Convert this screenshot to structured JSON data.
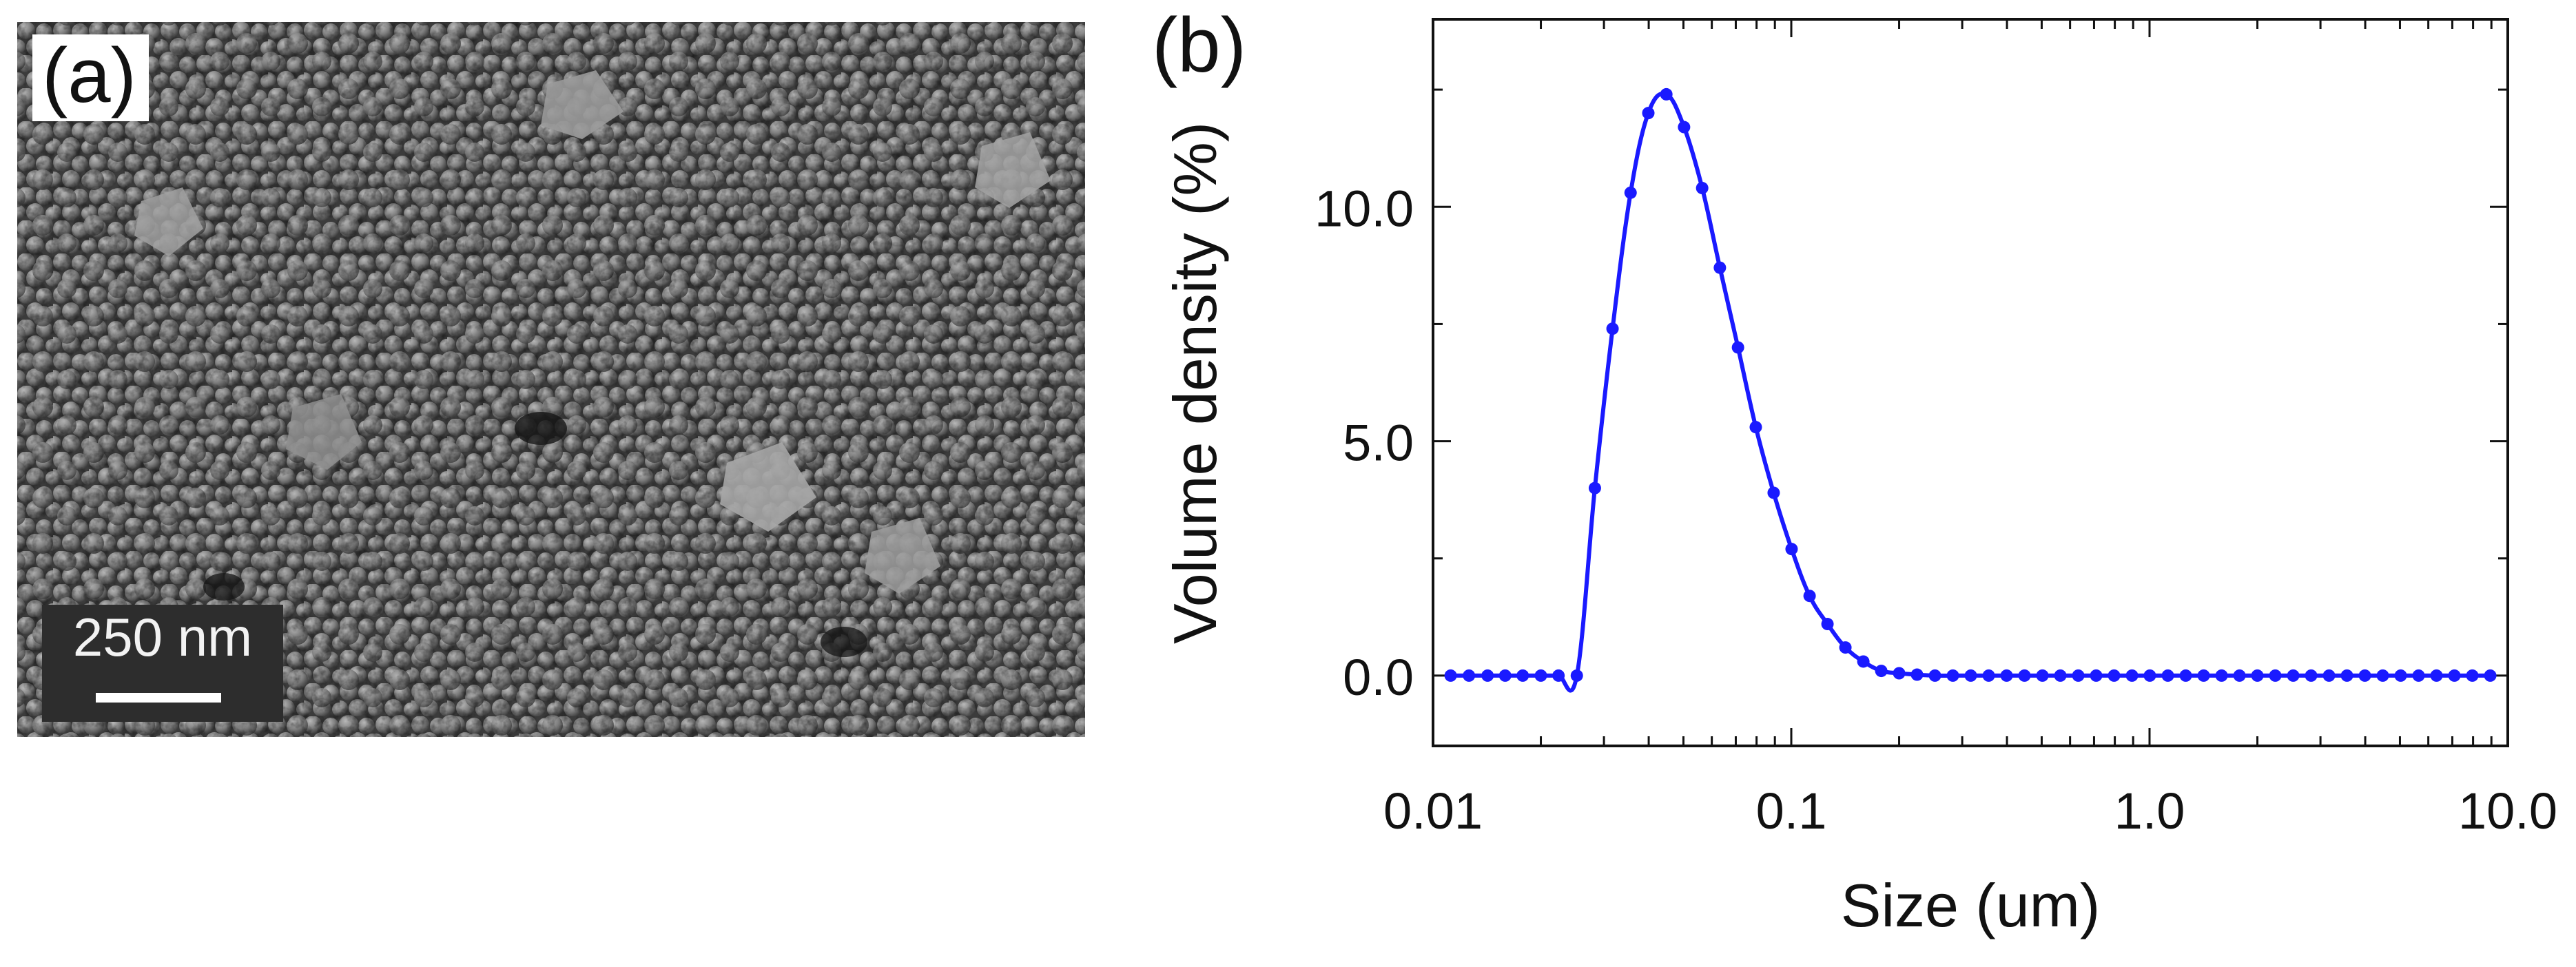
{
  "panel_a": {
    "label": "(a)",
    "scale_bar_label": "250 nm"
  },
  "panel_b": {
    "label": "(b)"
  },
  "colors": {
    "series": "#1a1aff",
    "axis": "#111111"
  },
  "chart_data": {
    "type": "line",
    "title": "",
    "xlabel": "Size (um)",
    "ylabel": "Volume density (%)",
    "xscale": "log",
    "xlim": [
      0.01,
      10.0
    ],
    "ylim": [
      -1.5,
      14.0
    ],
    "x_tick_labels": [
      "0.01",
      "0.1",
      "1.0",
      "10.0"
    ],
    "x_tick_values": [
      0.01,
      0.1,
      1.0,
      10.0
    ],
    "y_tick_labels": [
      "0.0",
      "5.0",
      "10.0"
    ],
    "y_tick_values": [
      0.0,
      5.0,
      10.0
    ],
    "grid": false,
    "legend": "none",
    "series": [
      {
        "name": "Volume density",
        "x": [
          0.0112,
          0.0126,
          0.0142,
          0.0159,
          0.0178,
          0.02,
          0.0224,
          0.0252,
          0.0283,
          0.0317,
          0.0356,
          0.0399,
          0.0448,
          0.0502,
          0.0564,
          0.0632,
          0.071,
          0.0796,
          0.0893,
          0.1002,
          0.1125,
          0.1262,
          0.1416,
          0.1589,
          0.1783,
          0.2,
          0.2244,
          0.2518,
          0.2825,
          0.317,
          0.3557,
          0.3991,
          0.4477,
          0.5024,
          0.5637,
          0.6325,
          0.7096,
          0.7962,
          0.8934,
          1.002,
          1.125,
          1.262,
          1.416,
          1.589,
          1.783,
          2.0,
          2.244,
          2.518,
          2.825,
          3.17,
          3.557,
          3.991,
          4.477,
          5.024,
          5.637,
          6.325,
          7.096,
          7.962,
          8.934
        ],
        "values": [
          0.0,
          0.0,
          0.0,
          0.0,
          0.0,
          0.0,
          0.0,
          0.0,
          4.0,
          7.4,
          10.3,
          12.0,
          12.4,
          11.7,
          10.4,
          8.7,
          7.0,
          5.3,
          3.9,
          2.7,
          1.7,
          1.1,
          0.6,
          0.3,
          0.1,
          0.05,
          0.02,
          0.0,
          0.0,
          0.0,
          0.0,
          0.0,
          0.0,
          0.0,
          0.0,
          0.0,
          0.0,
          0.0,
          0.0,
          0.0,
          0.0,
          0.0,
          0.0,
          0.0,
          0.0,
          0.0,
          0.0,
          0.0,
          0.0,
          0.0,
          0.0,
          0.0,
          0.0,
          0.0,
          0.0,
          0.0,
          0.0,
          0.0,
          0.0
        ]
      }
    ]
  }
}
